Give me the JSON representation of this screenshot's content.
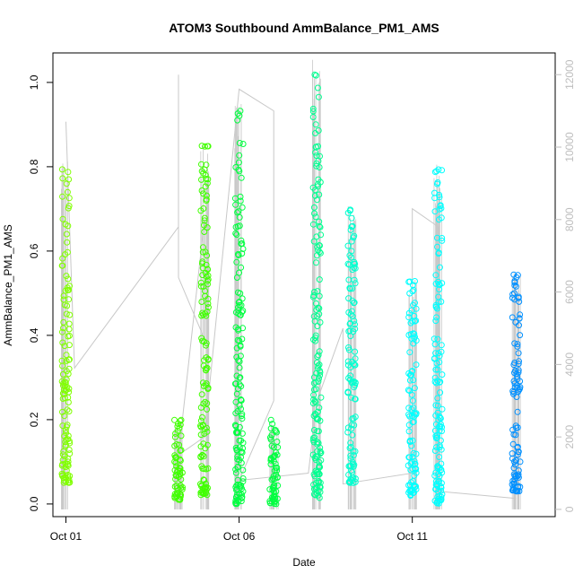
{
  "chart_data": {
    "type": "scatter",
    "title": "ATOM3 Southbound AmmBalance_PM1_AMS",
    "xlabel": "Date",
    "ylabel": "AmmBalance_PM1_AMS",
    "x_ticks": [
      "Oct 01",
      "Oct 06",
      "Oct 11"
    ],
    "y_ticks": [
      "0.0",
      "0.2",
      "0.4",
      "0.6",
      "0.8",
      "1.0"
    ],
    "y2_ticks": [
      "0",
      "2000",
      "4000",
      "6000",
      "8000",
      "10000",
      "12000"
    ],
    "xlim": [
      "2016-09-30T15:00",
      "2016-10-15T03:00"
    ],
    "ylim": [
      -0.03,
      1.07
    ],
    "y2lim": [
      -200,
      12600
    ],
    "grid": false,
    "legend": "none",
    "colors": {
      "line": "#c8c8c8",
      "axis": "#000000",
      "axis2": "#bebebe",
      "clusters": [
        "#80ff00",
        "#40ff00",
        "#00ff40",
        "#00ff90",
        "#00ffd0",
        "#00ffff",
        "#00c0ff",
        "#0090ff"
      ]
    },
    "clusters": [
      {
        "day": "Oct 01",
        "center": "2016-10-01T00:00",
        "ymin": 0.05,
        "ymax": 0.8,
        "color": "#80ff00"
      },
      {
        "day": "Oct 04",
        "center": "2016-10-04T06:00",
        "ymin": 0.01,
        "ymax": 0.2,
        "color": "#40ff00"
      },
      {
        "day": "Oct 05",
        "center": "2016-10-05T00:00",
        "ymin": 0.02,
        "ymax": 0.85,
        "color": "#40ff00"
      },
      {
        "day": "Oct 06",
        "center": "2016-10-06T00:00",
        "ymin": 0.0,
        "ymax": 0.94,
        "color": "#00ff40"
      },
      {
        "day": "Oct 07",
        "center": "2016-10-07T00:00",
        "ymin": 0.0,
        "ymax": 0.2,
        "color": "#00ff40"
      },
      {
        "day": "Oct 08",
        "center": "2016-10-08T06:00",
        "ymin": 0.01,
        "ymax": 1.04,
        "color": "#00ff90"
      },
      {
        "day": "Oct 09",
        "center": "2016-10-09T06:00",
        "ymin": 0.05,
        "ymax": 0.7,
        "color": "#00ffd0"
      },
      {
        "day": "Oct 11",
        "center": "2016-10-11T00:00",
        "ymin": 0.02,
        "ymax": 0.53,
        "color": "#00ffff"
      },
      {
        "day": "Oct 12",
        "center": "2016-10-11T18:00",
        "ymin": 0.0,
        "ymax": 0.82,
        "color": "#00ffff"
      },
      {
        "day": "Oct 14",
        "center": "2016-10-14T00:00",
        "ymin": 0.03,
        "ymax": 0.55,
        "color": "#0090ff"
      }
    ],
    "line_series": [
      {
        "x": "2016-10-01T00:00",
        "y2": 10700
      },
      {
        "x": "2016-10-01T06:00",
        "y2": 3900
      },
      {
        "x": "2016-10-04T06:00",
        "y2": 7800
      },
      {
        "x": "2016-10-04T06:00",
        "y2": 12000
      },
      {
        "x": "2016-10-04T06:00",
        "y2": 6400
      },
      {
        "x": "2016-10-05T00:00",
        "y2": 4700
      },
      {
        "x": "2016-10-05T00:00",
        "y2": 8000
      },
      {
        "x": "2016-10-04T06:00",
        "y2": 1500
      },
      {
        "x": "2016-10-05T00:00",
        "y2": 2000
      },
      {
        "x": "2016-10-06T00:00",
        "y2": 11600
      },
      {
        "x": "2016-10-07T00:00",
        "y2": 11000
      },
      {
        "x": "2016-10-07T00:00",
        "y2": 3000
      },
      {
        "x": "2016-10-06T00:00",
        "y2": 800
      },
      {
        "x": "2016-10-08T00:00",
        "y2": 1000
      },
      {
        "x": "2016-10-08T06:00",
        "y2": 3000
      },
      {
        "x": "2016-10-09T00:00",
        "y2": 5000
      },
      {
        "x": "2016-10-09T00:00",
        "y2": 700
      },
      {
        "x": "2016-10-11T00:00",
        "y2": 1000
      },
      {
        "x": "2016-10-11T00:00",
        "y2": 8300
      },
      {
        "x": "2016-10-11T18:00",
        "y2": 7800
      },
      {
        "x": "2016-10-11T18:00",
        "y2": 500
      },
      {
        "x": "2016-10-14T00:00",
        "y2": 300
      }
    ]
  }
}
